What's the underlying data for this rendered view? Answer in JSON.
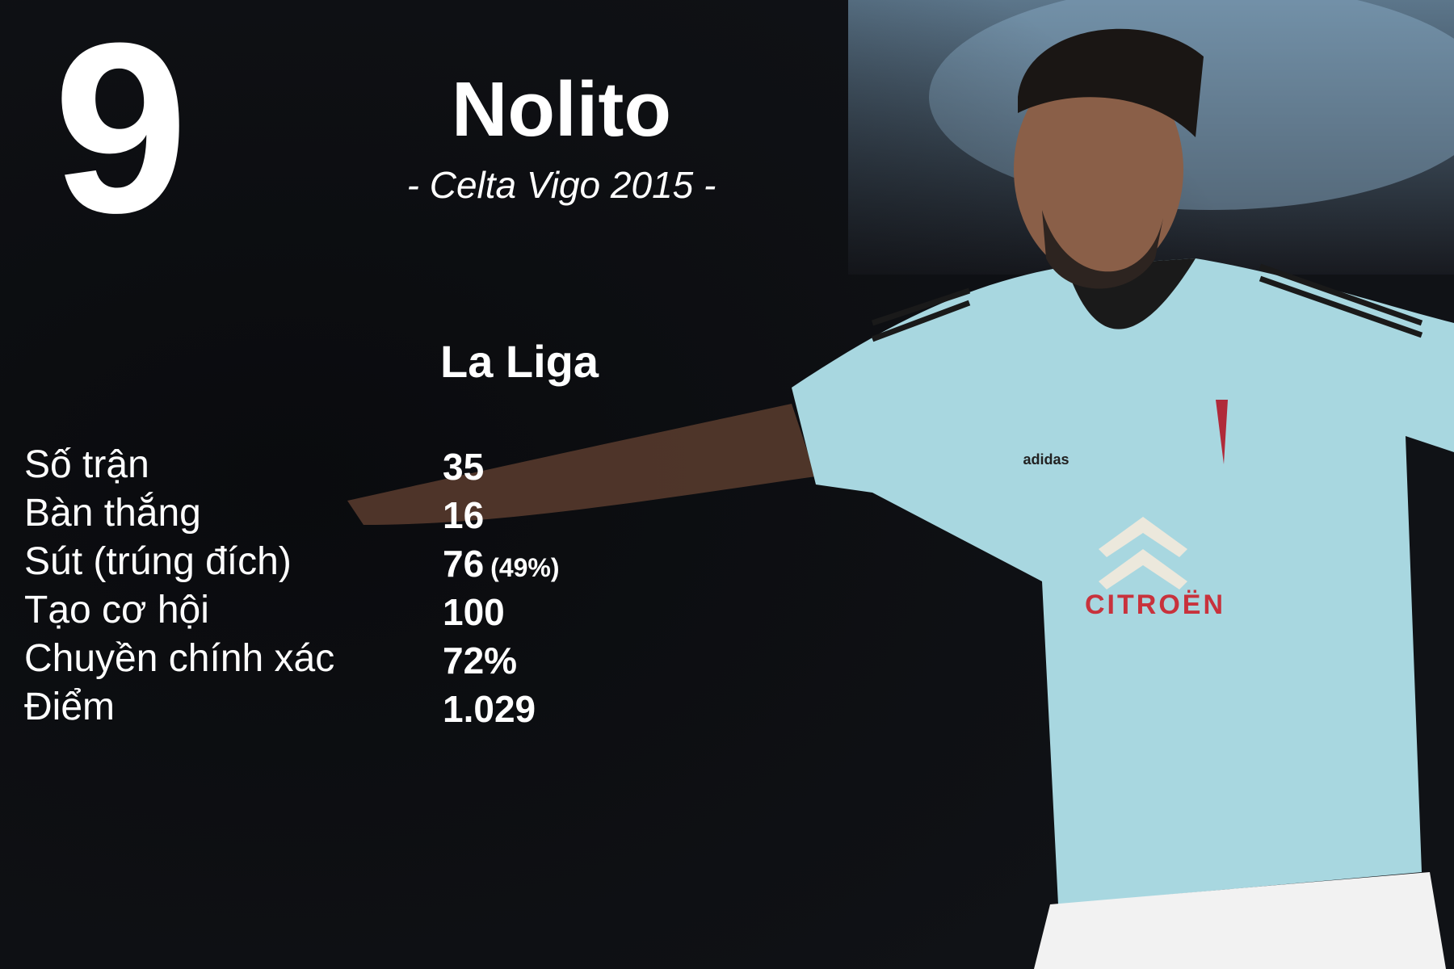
{
  "rank": "9",
  "player": {
    "name": "Nolito",
    "subtitle": "- Celta Vigo 2015 -"
  },
  "league": "La Liga",
  "stats": [
    {
      "label": "Số trận",
      "value": "35",
      "extra": ""
    },
    {
      "label": "Bàn thắng",
      "value": "16",
      "extra": ""
    },
    {
      "label": "Sút (trúng đích)",
      "value": "76",
      "extra": "(49%)"
    },
    {
      "label": "Tạo cơ hội",
      "value": "100",
      "extra": ""
    },
    {
      "label": "Chuyền chính xác",
      "value": "72%",
      "extra": ""
    },
    {
      "label": "Điểm",
      "value": "1.029",
      "extra": ""
    }
  ],
  "photo": {
    "shirt_sponsor": "CITROËN",
    "kit_brand": "adidas"
  },
  "colors": {
    "background": "#0b0c10",
    "shirt": "#a8d7e0",
    "sponsor": "#c8323c",
    "text": "#ffffff"
  }
}
